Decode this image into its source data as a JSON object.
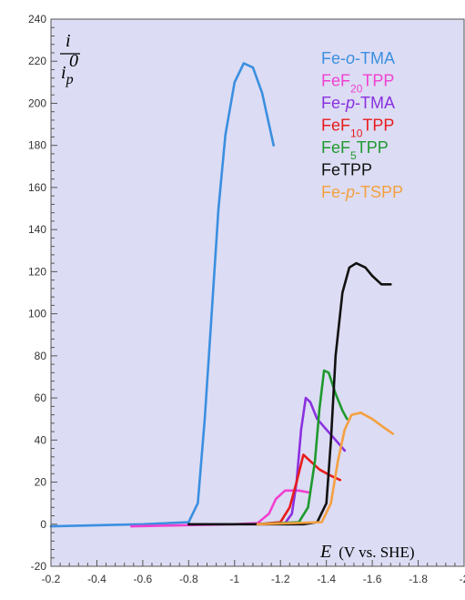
{
  "chart_data": {
    "type": "line",
    "title": "",
    "ylabel": {
      "main": "i",
      "sub": "p",
      "sup": "0"
    },
    "xlabel": {
      "var": "E",
      "unit": "(V vs. SHE)"
    },
    "xlim": [
      -0.2,
      -2.0
    ],
    "ylim": [
      -20,
      240
    ],
    "x_ticks": [
      -0.2,
      -0.4,
      -0.6,
      -0.8,
      -1,
      -1.2,
      -1.4,
      -1.6,
      -1.8,
      -2
    ],
    "x_tick_labels": [
      "-0.2",
      "-0.4",
      "-0.6",
      "-0.8",
      "-1",
      "-1.2",
      "-1.4",
      "-1.6",
      "-1.8",
      "-2"
    ],
    "y_ticks": [
      -20,
      0,
      20,
      40,
      60,
      80,
      100,
      120,
      140,
      160,
      180,
      200,
      220,
      240
    ],
    "y_tick_labels": [
      "-20",
      "0",
      "20",
      "40",
      "60",
      "80",
      "100",
      "120",
      "140",
      "160",
      "180",
      "200",
      "220",
      "240"
    ],
    "grid": false,
    "background": "#dcdcf4",
    "legend_position": "top-right",
    "series": [
      {
        "name": "Fe-o-TMA",
        "legend": [
          {
            "t": "Fe-"
          },
          {
            "t": "o",
            "i": true
          },
          {
            "t": "-TMA"
          }
        ],
        "color": "#3b8fe0",
        "points": [
          [
            -0.2,
            -1
          ],
          [
            -0.6,
            0
          ],
          [
            -0.8,
            1
          ],
          [
            -0.84,
            10
          ],
          [
            -0.87,
            50
          ],
          [
            -0.9,
            100
          ],
          [
            -0.93,
            150
          ],
          [
            -0.96,
            185
          ],
          [
            -1.0,
            210
          ],
          [
            -1.04,
            219
          ],
          [
            -1.08,
            217
          ],
          [
            -1.12,
            205
          ],
          [
            -1.17,
            180
          ]
        ]
      },
      {
        "name": "FeF20TPP",
        "legend": [
          {
            "t": "FeF"
          },
          {
            "t": "20",
            "sub": true
          },
          {
            "t": "TPP"
          }
        ],
        "color": "#f040d0",
        "points": [
          [
            -0.55,
            -1
          ],
          [
            -1.0,
            0
          ],
          [
            -1.1,
            0.5
          ],
          [
            -1.15,
            5
          ],
          [
            -1.18,
            12
          ],
          [
            -1.22,
            16
          ],
          [
            -1.28,
            16
          ],
          [
            -1.33,
            15
          ]
        ]
      },
      {
        "name": "Fe-p-TMA",
        "legend": [
          {
            "t": "Fe-"
          },
          {
            "t": "p",
            "i": true
          },
          {
            "t": "-TMA"
          }
        ],
        "color": "#8a30e0",
        "points": [
          [
            -1.1,
            0
          ],
          [
            -1.22,
            0.5
          ],
          [
            -1.25,
            5
          ],
          [
            -1.27,
            20
          ],
          [
            -1.29,
            45
          ],
          [
            -1.31,
            60
          ],
          [
            -1.33,
            58
          ],
          [
            -1.36,
            50
          ],
          [
            -1.4,
            45
          ],
          [
            -1.44,
            40
          ],
          [
            -1.48,
            35
          ]
        ]
      },
      {
        "name": "FeF10TPP",
        "legend": [
          {
            "t": "FeF"
          },
          {
            "t": "10",
            "sub": true
          },
          {
            "t": "TPP"
          }
        ],
        "color": "#e81c1c",
        "points": [
          [
            -1.1,
            0
          ],
          [
            -1.2,
            1
          ],
          [
            -1.24,
            8
          ],
          [
            -1.27,
            20
          ],
          [
            -1.3,
            33
          ],
          [
            -1.33,
            30
          ],
          [
            -1.37,
            26
          ],
          [
            -1.42,
            23
          ],
          [
            -1.46,
            21
          ]
        ]
      },
      {
        "name": "FeF5TPP",
        "legend": [
          {
            "t": "FeF"
          },
          {
            "t": "5",
            "sub": true
          },
          {
            "t": "TPP"
          }
        ],
        "color": "#1e9a2e",
        "points": [
          [
            -1.1,
            0
          ],
          [
            -1.28,
            1
          ],
          [
            -1.32,
            8
          ],
          [
            -1.35,
            30
          ],
          [
            -1.37,
            55
          ],
          [
            -1.39,
            73
          ],
          [
            -1.41,
            72
          ],
          [
            -1.44,
            62
          ],
          [
            -1.47,
            54
          ],
          [
            -1.49,
            50
          ]
        ]
      },
      {
        "name": "FeTPP",
        "legend": [
          {
            "t": "FeTPP"
          }
        ],
        "color": "#111111",
        "points": [
          [
            -0.8,
            0
          ],
          [
            -1.3,
            0
          ],
          [
            -1.36,
            1
          ],
          [
            -1.4,
            10
          ],
          [
            -1.42,
            40
          ],
          [
            -1.44,
            80
          ],
          [
            -1.47,
            110
          ],
          [
            -1.5,
            122
          ],
          [
            -1.53,
            124
          ],
          [
            -1.57,
            122
          ],
          [
            -1.6,
            118
          ],
          [
            -1.64,
            114
          ],
          [
            -1.68,
            114
          ]
        ]
      },
      {
        "name": "Fe-p-TSPP",
        "legend": [
          {
            "t": "Fe-"
          },
          {
            "t": "p",
            "i": true
          },
          {
            "t": "-TSPP"
          }
        ],
        "color": "#f5a040",
        "points": [
          [
            -1.1,
            0
          ],
          [
            -1.38,
            1
          ],
          [
            -1.42,
            10
          ],
          [
            -1.45,
            30
          ],
          [
            -1.48,
            45
          ],
          [
            -1.51,
            52
          ],
          [
            -1.55,
            53
          ],
          [
            -1.6,
            50
          ],
          [
            -1.65,
            46
          ],
          [
            -1.69,
            43
          ]
        ]
      }
    ]
  }
}
